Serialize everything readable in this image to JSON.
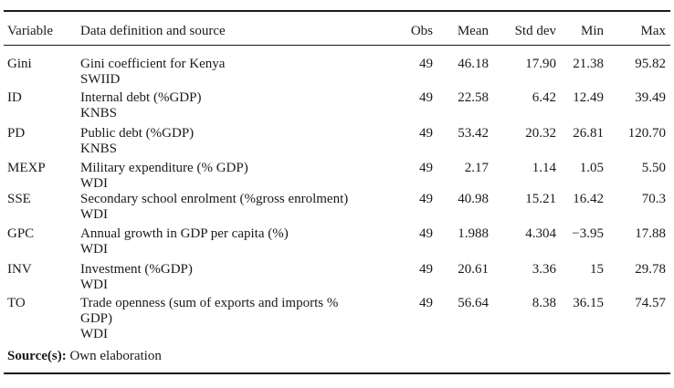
{
  "table": {
    "headers": {
      "variable": "Variable",
      "definition": "Data definition and source",
      "obs": "Obs",
      "mean": "Mean",
      "std": "Std dev",
      "min": "Min",
      "max": "Max"
    },
    "rows": [
      {
        "variable": "Gini",
        "def1": "Gini coefficient for Kenya",
        "def2": "",
        "source": "SWIID",
        "obs": "49",
        "mean": "46.18",
        "std": "17.90",
        "min": "21.38",
        "max": "95.82"
      },
      {
        "variable": "ID",
        "def1": "Internal debt (%GDP)",
        "def2": "",
        "source": "KNBS",
        "obs": "49",
        "mean": "22.58",
        "std": "6.42",
        "min": "12.49",
        "max": "39.49"
      },
      {
        "variable": "PD",
        "def1": "Public debt (%GDP)",
        "def2": "",
        "source": "KNBS",
        "obs": "49",
        "mean": "53.42",
        "std": "20.32",
        "min": "26.81",
        "max": "120.70"
      },
      {
        "variable": "MEXP",
        "def1": "Military expenditure (% GDP)",
        "def2": "",
        "source": "WDI",
        "obs": "49",
        "mean": "2.17",
        "std": "1.14",
        "min": "1.05",
        "max": "5.50"
      },
      {
        "variable": "SSE",
        "def1": "Secondary school enrolment (%gross enrolment)",
        "def2": "",
        "source": "WDI",
        "obs": "49",
        "mean": "40.98",
        "std": "15.21",
        "min": "16.42",
        "max": "70.3"
      },
      {
        "variable": "GPC",
        "def1": "Annual growth in GDP per capita (%)",
        "def2": "",
        "source": "WDI",
        "obs": "49",
        "mean": "1.988",
        "std": "4.304",
        "min": "−3.95",
        "max": "17.88"
      },
      {
        "variable": "INV",
        "def1": "Investment (%GDP)",
        "def2": "",
        "source": "WDI",
        "obs": "49",
        "mean": "20.61",
        "std": "3.36",
        "min": "15",
        "max": "29.78"
      },
      {
        "variable": "TO",
        "def1": "Trade openness (sum of exports and imports %",
        "def2": "GDP)",
        "source": "WDI",
        "obs": "49",
        "mean": "56.64",
        "std": "8.38",
        "min": "36.15",
        "max": "74.57"
      }
    ]
  },
  "footer": {
    "source_label": "Source(s):",
    "source_text": "Own elaboration"
  }
}
